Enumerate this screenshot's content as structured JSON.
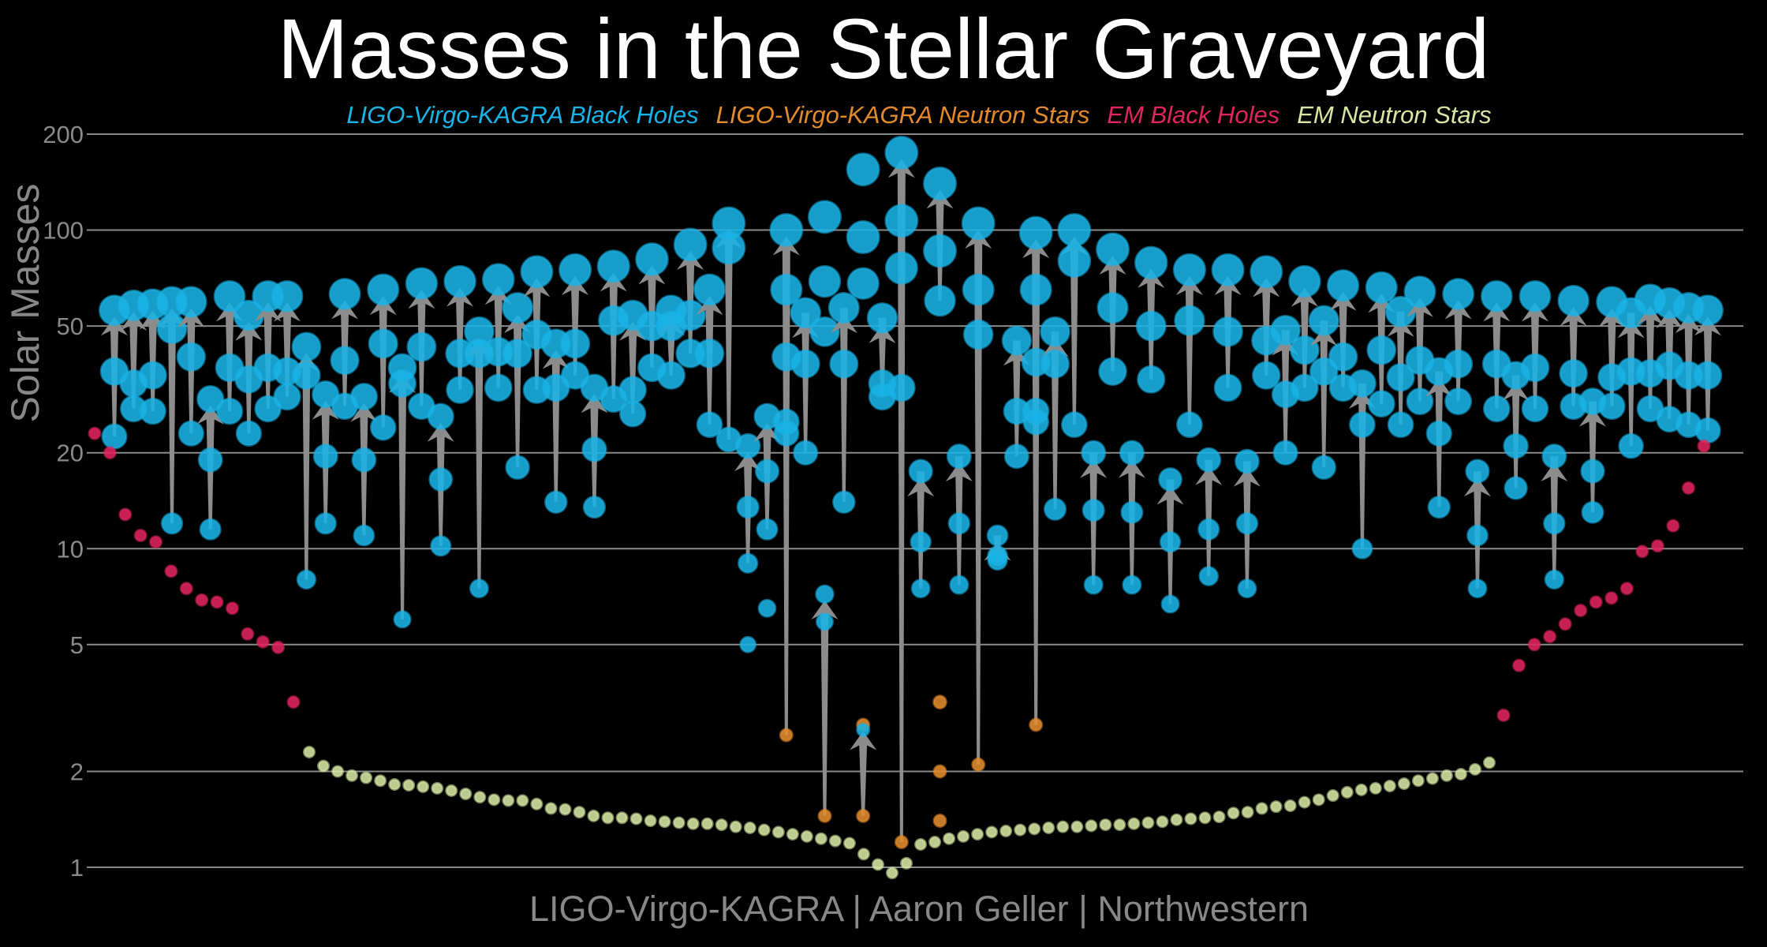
{
  "chart_data": {
    "type": "scatter",
    "title": "Masses in the Stellar Graveyard",
    "ylabel": "Solar Masses",
    "yscale": "log",
    "ylim": [
      0.95,
      210
    ],
    "yticks": [
      1,
      2,
      5,
      10,
      20,
      50,
      100,
      200
    ],
    "grid": true,
    "legend_position": "top",
    "credit": "LIGO-Virgo-KAGRA | Aaron Geller | Northwestern",
    "legend": [
      {
        "label": "LIGO-Virgo-KAGRA Black Holes",
        "color": "#1ab3e6"
      },
      {
        "label": "LIGO-Virgo-KAGRA Neutron Stars",
        "color": "#e38b2c"
      },
      {
        "label": "EM Black Holes",
        "color": "#e0245e"
      },
      {
        "label": "EM Neutron Stars",
        "color": "#d7e6a3"
      }
    ],
    "gw_mergers": [
      {
        "m1": 36.0,
        "m2": 22.5,
        "final": 56.0,
        "t1": "bh",
        "t2": "bh"
      },
      {
        "m1": 33.0,
        "m2": 27.5,
        "final": 58.0,
        "t1": "bh",
        "t2": "bh"
      },
      {
        "m1": 35.0,
        "m2": 27.0,
        "final": 58.5,
        "t1": "bh",
        "t2": "bh"
      },
      {
        "m1": 49.0,
        "m2": 12.0,
        "final": 59.5,
        "t1": "bh",
        "t2": "bh"
      },
      {
        "m1": 40.0,
        "m2": 23.0,
        "final": 59.5,
        "t1": "bh",
        "t2": "bh"
      },
      {
        "m1": 19.0,
        "m2": 11.5,
        "final": 29.5,
        "t1": "bh",
        "t2": "bh",
        "mid": true
      },
      {
        "m1": 37.0,
        "m2": 27.0,
        "final": 62.0,
        "t1": "bh",
        "t2": "bh"
      },
      {
        "m1": 34.0,
        "m2": 23.0,
        "final": 54.0,
        "t1": "bh",
        "t2": "bh",
        "mid": true
      },
      {
        "m1": 37.0,
        "m2": 27.5,
        "final": 62.0,
        "t1": "bh",
        "t2": "bh"
      },
      {
        "m1": 36.0,
        "m2": 30.0,
        "final": 62.0,
        "t1": "bh",
        "t2": "bh"
      },
      {
        "m1": 35.0,
        "m2": 8.0,
        "final": 43.0,
        "t1": "bh",
        "t2": "bh",
        "mid": true
      },
      {
        "m1": 19.5,
        "m2": 12.0,
        "final": 30.5,
        "t1": "bh",
        "t2": "bh",
        "mid": true
      },
      {
        "m1": 39.0,
        "m2": 28.0,
        "final": 63.0,
        "t1": "bh",
        "t2": "bh"
      },
      {
        "m1": 19.0,
        "m2": 11.0,
        "final": 30.0,
        "t1": "bh",
        "t2": "bh",
        "mid": true
      },
      {
        "m1": 44.0,
        "m2": 24.0,
        "final": 65.0,
        "t1": "bh",
        "t2": "bh"
      },
      {
        "m1": 33.0,
        "m2": 6.0,
        "final": 37.0,
        "t1": "bh",
        "t2": "bh",
        "mid": true
      },
      {
        "m1": 43.0,
        "m2": 28.0,
        "final": 68.0,
        "t1": "bh",
        "t2": "bh"
      },
      {
        "m1": 16.5,
        "m2": 10.2,
        "final": 26.0,
        "t1": "bh",
        "t2": "bh",
        "mid": true
      },
      {
        "m1": 41.0,
        "m2": 31.5,
        "final": 69.0,
        "t1": "bh",
        "t2": "bh"
      },
      {
        "m1": 41.0,
        "m2": 7.5,
        "final": 48.0,
        "t1": "bh",
        "t2": "bh",
        "mid": true
      },
      {
        "m1": 41.5,
        "m2": 32.0,
        "final": 70.0,
        "t1": "bh",
        "t2": "bh"
      },
      {
        "m1": 41.0,
        "m2": 18.0,
        "final": 57.0,
        "t1": "bh",
        "t2": "bh",
        "mid": true
      },
      {
        "m1": 47.0,
        "m2": 31.5,
        "final": 74.0,
        "t1": "bh",
        "t2": "bh"
      },
      {
        "m1": 32.0,
        "m2": 14.0,
        "final": 44.0,
        "t1": "bh",
        "t2": "bh",
        "mid": true
      },
      {
        "m1": 44.0,
        "m2": 35.0,
        "final": 75.0,
        "t1": "bh",
        "t2": "bh"
      },
      {
        "m1": 20.5,
        "m2": 13.5,
        "final": 32.0,
        "t1": "bh",
        "t2": "bh",
        "mid": true
      },
      {
        "m1": 52.0,
        "m2": 29.5,
        "final": 77.0,
        "t1": "bh",
        "t2": "bh"
      },
      {
        "m1": 31.5,
        "m2": 26.5,
        "final": 54.0,
        "t1": "bh",
        "t2": "bh",
        "mid": true
      },
      {
        "m1": 50.0,
        "m2": 37.0,
        "final": 81.0,
        "t1": "bh",
        "t2": "bh"
      },
      {
        "m1": 56.0,
        "m2": 35.0,
        "final": 50.0,
        "t1": "bh",
        "t2": "bh",
        "mid": true
      },
      {
        "m1": 54.0,
        "m2": 41.0,
        "final": 90.0,
        "t1": "bh",
        "t2": "bh"
      },
      {
        "m1": 41.0,
        "m2": 24.5,
        "final": 65.0,
        "t1": "bh",
        "t2": "bh",
        "mid": true
      },
      {
        "m1": 88.0,
        "m2": 22.0,
        "final": 105.0,
        "t1": "bh",
        "t2": "bh"
      },
      {
        "m1": 13.5,
        "m2": 9.0,
        "final": 21.0,
        "t1": "bh",
        "t2": "bh",
        "mid": true,
        "m3": 5.0
      },
      {
        "m1": 17.5,
        "m2": 11.5,
        "final": 26.0,
        "t1": "bh",
        "t2": "bh",
        "mid": true,
        "m3": 6.5
      },
      {
        "m1": 65.0,
        "m2": 2.6,
        "final": 100.0,
        "t1": "bh",
        "t2": "ns",
        "x_extra": [
          25.0,
          23.0,
          40.0
        ]
      },
      {
        "m1": 55.0,
        "m2": 38.0,
        "final": 20.0,
        "t1": "bh",
        "t2": "bh",
        "mid": true
      },
      {
        "m1": 5.9,
        "m2": 1.45,
        "final": 7.2,
        "t1": "bh",
        "t2": "ns",
        "mid": true,
        "extra": [
          69.0,
          48.0,
          110.0
        ]
      },
      {
        "m1": 57.0,
        "m2": 38.0,
        "final": 14.0,
        "t1": "bh",
        "t2": "bh",
        "mid": true
      },
      {
        "m1": 2.8,
        "m2": 1.45,
        "final": 2.7,
        "t1": "ns",
        "t2": "ns",
        "mid": true,
        "bh_extra": [
          95.0,
          68.0,
          155.0
        ]
      },
      {
        "m1": 53.0,
        "m2": 33.0,
        "final": 30.0,
        "t1": "bh",
        "t2": "bh",
        "mid": true
      },
      {
        "m1": 107.0,
        "m2": 1.2,
        "final": 175.0,
        "t1": "bh",
        "t2": "ns",
        "extra": [
          76.0,
          32.0
        ]
      },
      {
        "m1": 17.5,
        "m2": 10.5,
        "final": 7.5,
        "t1": "bh",
        "t2": "bh",
        "mid": true
      },
      {
        "m1": 86.0,
        "m2": 60.0,
        "final": 140.0,
        "t1": "bh",
        "t2": "bh",
        "ns_extra": [
          3.3,
          2.0,
          1.4
        ]
      },
      {
        "m1": 19.5,
        "m2": 12.0,
        "final": 7.7,
        "t1": "bh",
        "t2": "bh",
        "mid": true
      },
      {
        "m1": 65.0,
        "m2": 2.1,
        "final": 105.0,
        "t1": "bh",
        "t2": "ns",
        "extra": [
          47.0
        ]
      },
      {
        "m1": 11.0,
        "m2": 9.5,
        "final": 9.2,
        "t1": "bh",
        "t2": "bh",
        "mid": true
      },
      {
        "m1": 45.0,
        "m2": 27.0,
        "final": 19.5,
        "t1": "bh",
        "t2": "bh",
        "mid": true
      },
      {
        "m1": 65.0,
        "m2": 2.8,
        "final": 98.0,
        "t1": "bh",
        "t2": "ns",
        "extra": [
          38.5,
          27.0,
          25.0
        ]
      },
      {
        "m1": 48.0,
        "m2": 38.0,
        "final": 13.3,
        "t1": "bh",
        "t2": "bh",
        "mid": true
      },
      {
        "m1": 80.0,
        "m2": 24.5,
        "final": 100.0,
        "t1": "bh",
        "t2": "bh"
      },
      {
        "m1": 20.0,
        "m2": 13.2,
        "final": 7.7,
        "t1": "bh",
        "t2": "bh",
        "mid": true
      },
      {
        "m1": 57.0,
        "m2": 36.0,
        "final": 87.0,
        "t1": "bh",
        "t2": "bh"
      },
      {
        "m1": 20.0,
        "m2": 13.0,
        "final": 7.7,
        "t1": "bh",
        "t2": "bh",
        "mid": true
      },
      {
        "m1": 50.0,
        "m2": 34.0,
        "final": 79.0,
        "t1": "bh",
        "t2": "bh"
      },
      {
        "m1": 16.5,
        "m2": 10.5,
        "final": 6.7,
        "t1": "bh",
        "t2": "bh",
        "mid": true
      },
      {
        "m1": 52.0,
        "m2": 24.5,
        "final": 75.0,
        "t1": "bh",
        "t2": "bh"
      },
      {
        "m1": 19.0,
        "m2": 11.5,
        "final": 8.2,
        "t1": "bh",
        "t2": "bh",
        "mid": true
      },
      {
        "m1": 48.0,
        "m2": 32.0,
        "final": 75.0,
        "t1": "bh",
        "t2": "bh"
      },
      {
        "m1": 18.8,
        "m2": 12.0,
        "final": 7.5,
        "t1": "bh",
        "t2": "bh",
        "mid": true
      },
      {
        "m1": 45.0,
        "m2": 35.0,
        "final": 74.0,
        "t1": "bh",
        "t2": "bh"
      },
      {
        "m1": 48.5,
        "m2": 30.5,
        "final": 20.0,
        "t1": "bh",
        "t2": "bh",
        "mid": true
      },
      {
        "m1": 42.0,
        "m2": 32.0,
        "final": 69.0,
        "t1": "bh",
        "t2": "bh"
      },
      {
        "m1": 52.0,
        "m2": 36.0,
        "final": 18.0,
        "t1": "bh",
        "t2": "bh",
        "mid": true
      },
      {
        "m1": 40.0,
        "m2": 32.0,
        "final": 67.0,
        "t1": "bh",
        "t2": "bh"
      },
      {
        "m1": 33.0,
        "m2": 24.5,
        "final": 10.0,
        "t1": "bh",
        "t2": "bh",
        "mid": true
      },
      {
        "m1": 42.0,
        "m2": 28.5,
        "final": 66.0,
        "t1": "bh",
        "t2": "bh"
      },
      {
        "m1": 55.5,
        "m2": 34.5,
        "final": 24.5,
        "t1": "bh",
        "t2": "bh",
        "mid": true
      },
      {
        "m1": 39.0,
        "m2": 29.0,
        "final": 64.0,
        "t1": "bh",
        "t2": "bh"
      },
      {
        "m1": 36.0,
        "m2": 23.0,
        "final": 13.5,
        "t1": "bh",
        "t2": "bh",
        "mid": true
      },
      {
        "m1": 38.0,
        "m2": 29.0,
        "final": 63.0,
        "t1": "bh",
        "t2": "bh"
      },
      {
        "m1": 17.5,
        "m2": 11.0,
        "final": 7.5,
        "t1": "bh",
        "t2": "bh",
        "mid": true
      },
      {
        "m1": 38.0,
        "m2": 27.5,
        "final": 62.0,
        "t1": "bh",
        "t2": "bh"
      },
      {
        "m1": 35.0,
        "m2": 21.0,
        "final": 15.5,
        "t1": "bh",
        "t2": "bh",
        "mid": true
      },
      {
        "m1": 37.0,
        "m2": 27.5,
        "final": 62.0,
        "t1": "bh",
        "t2": "bh"
      },
      {
        "m1": 19.5,
        "m2": 12.0,
        "final": 8.0,
        "t1": "bh",
        "t2": "bh",
        "mid": true
      },
      {
        "m1": 35.5,
        "m2": 28.0,
        "final": 60.0,
        "t1": "bh",
        "t2": "bh"
      },
      {
        "m1": 29.0,
        "m2": 17.5,
        "final": 13.0,
        "t1": "bh",
        "t2": "bh",
        "mid": true
      },
      {
        "m1": 34.5,
        "m2": 28.0,
        "final": 59.5,
        "t1": "bh",
        "t2": "bh"
      },
      {
        "m1": 55.0,
        "m2": 36.0,
        "final": 21.0,
        "t1": "bh",
        "t2": "bh",
        "mid": true
      },
      {
        "m1": 35.5,
        "m2": 27.5,
        "final": 60.5,
        "t1": "bh",
        "t2": "bh"
      },
      {
        "m1": 37.5,
        "m2": 25.5,
        "final": 59.0,
        "t1": "bh",
        "t2": "bh"
      },
      {
        "m1": 35.0,
        "m2": 24.5,
        "final": 57.0,
        "t1": "bh",
        "t2": "bh"
      },
      {
        "m1": 35.0,
        "m2": 23.5,
        "final": 56.0,
        "t1": "bh",
        "t2": "bh"
      }
    ],
    "em_black_holes": [
      23.0,
      20.0,
      12.8,
      11.0,
      10.5,
      8.5,
      7.5,
      6.9,
      6.8,
      6.5,
      5.4,
      5.1,
      4.9,
      3.3,
      3.0,
      4.3,
      5.0,
      5.3,
      5.8,
      6.4,
      6.8,
      7.0,
      7.5,
      9.8,
      10.2,
      11.8,
      15.5,
      21.0
    ],
    "em_neutron_stars": [
      2.3,
      2.08,
      2.0,
      1.94,
      1.91,
      1.87,
      1.82,
      1.81,
      1.79,
      1.77,
      1.74,
      1.7,
      1.66,
      1.63,
      1.62,
      1.62,
      1.58,
      1.53,
      1.52,
      1.49,
      1.45,
      1.43,
      1.43,
      1.42,
      1.4,
      1.39,
      1.38,
      1.37,
      1.37,
      1.36,
      1.34,
      1.33,
      1.31,
      1.29,
      1.27,
      1.25,
      1.23,
      1.21,
      1.19,
      1.1,
      1.02,
      0.96,
      1.03,
      1.18,
      1.2,
      1.23,
      1.25,
      1.27,
      1.29,
      1.3,
      1.31,
      1.32,
      1.33,
      1.34,
      1.34,
      1.35,
      1.36,
      1.36,
      1.37,
      1.38,
      1.39,
      1.41,
      1.42,
      1.43,
      1.44,
      1.48,
      1.49,
      1.53,
      1.55,
      1.56,
      1.6,
      1.63,
      1.68,
      1.72,
      1.75,
      1.77,
      1.8,
      1.83,
      1.87,
      1.9,
      1.94,
      1.96,
      2.03,
      2.13
    ]
  }
}
